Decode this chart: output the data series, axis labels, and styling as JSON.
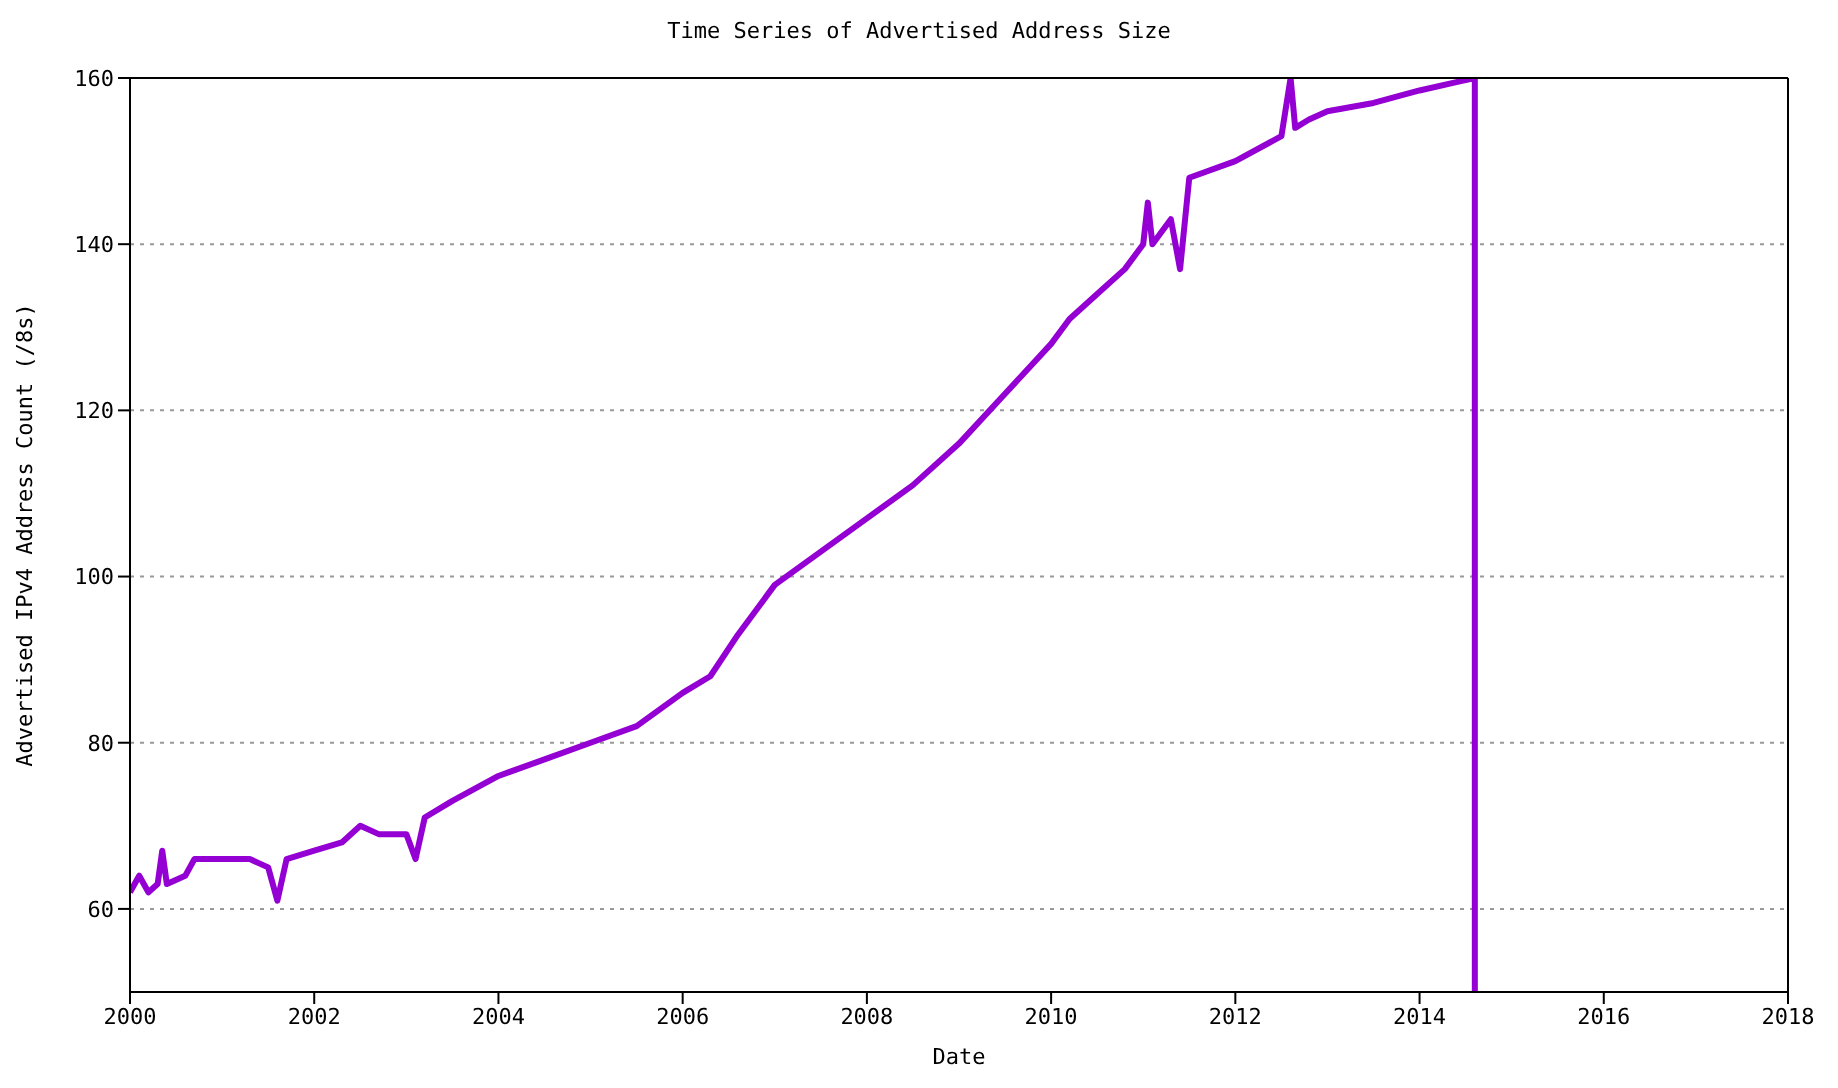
{
  "chart_data": {
    "type": "line",
    "title": "Time Series of Advertised Address Size",
    "xlabel": "Date",
    "ylabel": "Advertised IPv4 Address Count (/8s)",
    "x": [
      2000.0,
      2000.1,
      2000.2,
      2000.3,
      2000.35,
      2000.4,
      2000.6,
      2000.7,
      2001.0,
      2001.3,
      2001.5,
      2001.6,
      2001.7,
      2002.0,
      2002.3,
      2002.5,
      2002.7,
      2003.0,
      2003.1,
      2003.2,
      2003.5,
      2004.0,
      2004.5,
      2005.0,
      2005.5,
      2006.0,
      2006.3,
      2006.6,
      2007.0,
      2007.5,
      2008.0,
      2008.5,
      2009.0,
      2009.5,
      2010.0,
      2010.2,
      2010.5,
      2010.8,
      2011.0,
      2011.05,
      2011.1,
      2011.3,
      2011.4,
      2011.5,
      2012.0,
      2012.5,
      2012.6,
      2012.65,
      2012.8,
      2013.0,
      2013.5,
      2014.0,
      2014.4,
      2014.6,
      2014.6
    ],
    "series": [
      {
        "color": "#9400d3",
        "values": [
          62,
          64,
          62,
          63,
          67,
          63,
          64,
          66,
          66,
          66,
          65,
          61,
          66,
          67,
          68,
          70,
          69,
          69,
          66,
          71,
          73,
          76,
          78,
          80,
          82,
          86,
          88,
          93,
          99,
          103,
          107,
          111,
          116,
          122,
          128,
          131,
          134,
          137,
          140,
          145,
          140,
          143,
          137,
          148,
          150,
          153,
          160,
          154,
          155,
          156,
          157,
          158.5,
          159.5,
          160,
          50
        ]
      }
    ],
    "xlim": [
      2000,
      2018
    ],
    "xticks": [
      2000,
      2002,
      2004,
      2006,
      2008,
      2010,
      2012,
      2014,
      2016,
      2018
    ],
    "ylim": [
      50,
      160
    ],
    "yticks": [
      60,
      80,
      100,
      120,
      140,
      160
    ],
    "grid": "y",
    "marker": "none",
    "line_style": "solid"
  }
}
